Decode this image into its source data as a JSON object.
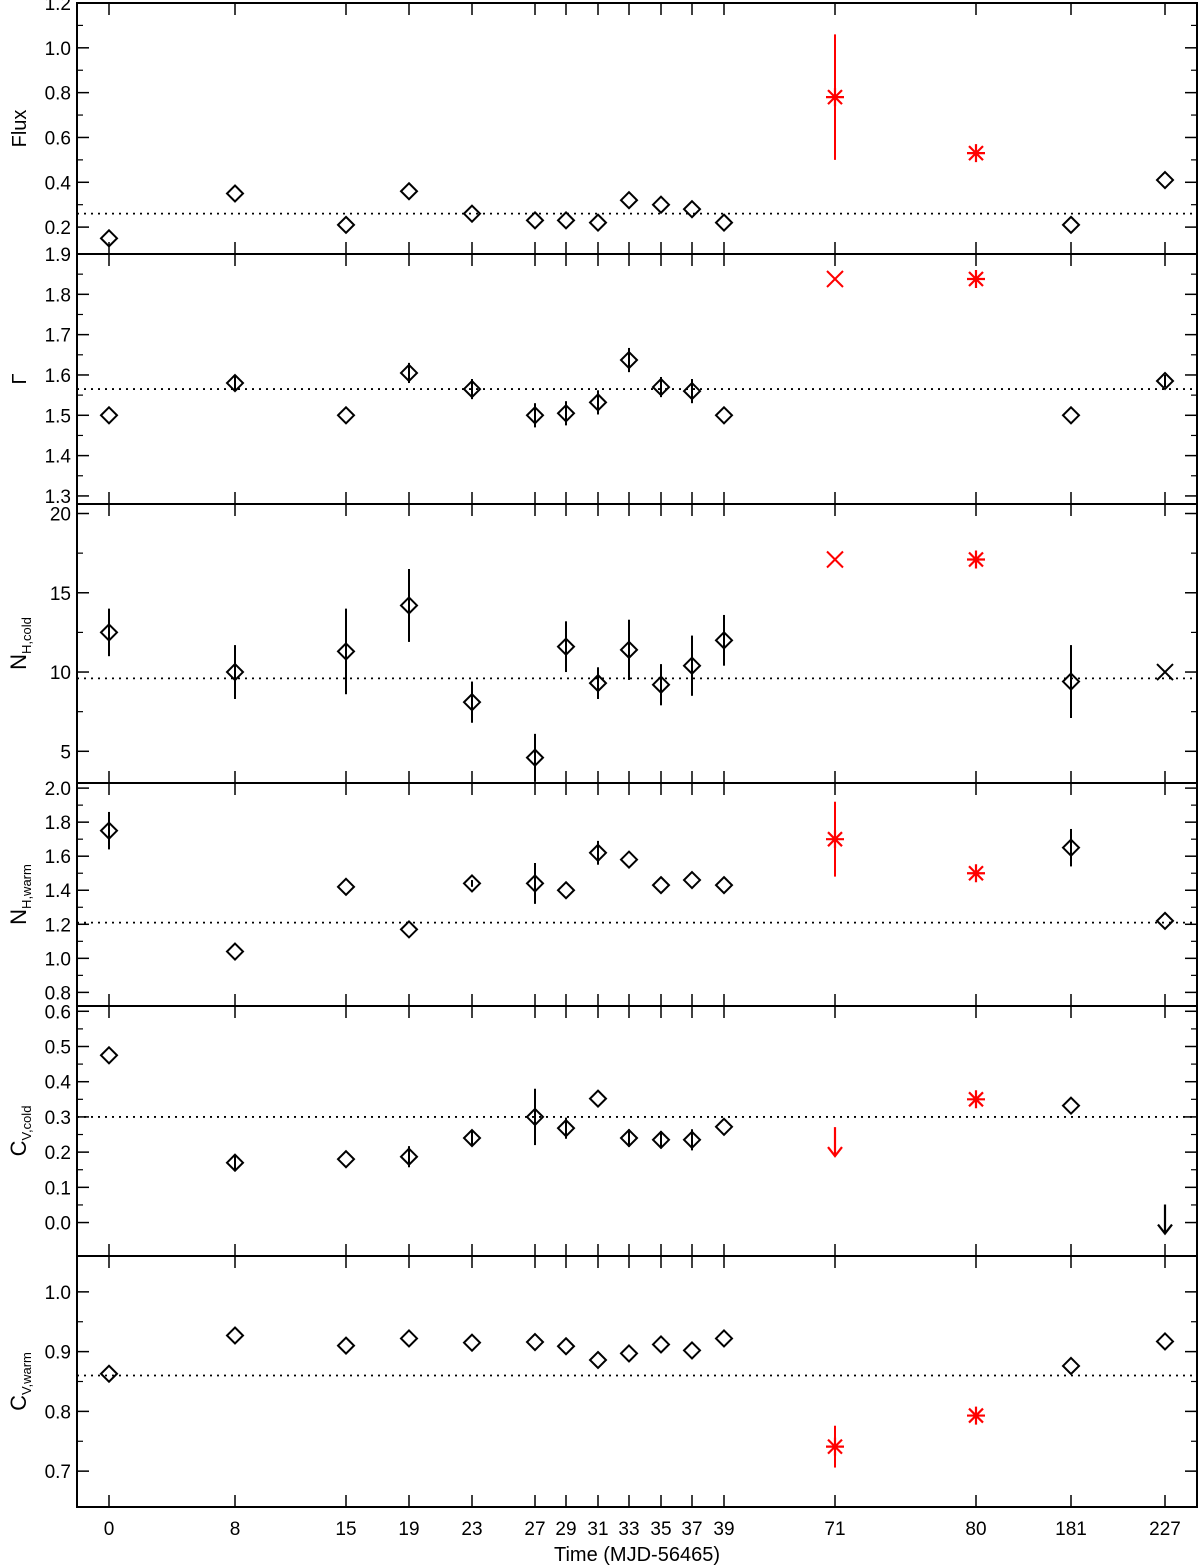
{
  "chart_data": {
    "type": "scatter",
    "colors": {
      "black": "#000000",
      "red": "#ff0000"
    },
    "xlabel": "Time (MJD-56465)",
    "x_ticks": [
      "0",
      "8",
      "15",
      "19",
      "23",
      "27",
      "29",
      "31",
      "33",
      "35",
      "37",
      "39",
      "71",
      "80",
      "181",
      "227"
    ],
    "x_axis_note": "broken axis: tick labels are evenly spaced by index, not by value",
    "panels": [
      {
        "ylabel": "Flux",
        "ylabel_sub": "",
        "ylim": [
          0.08,
          1.2
        ],
        "yticks": [
          "0.2",
          "0.4",
          "0.6",
          "0.8",
          "1.0",
          "1.2"
        ],
        "ytick_values": [
          0.2,
          0.4,
          0.6,
          0.8,
          1.0,
          1.2
        ],
        "reference_line": 0.26,
        "points": [
          {
            "x": "0",
            "y": 0.15,
            "err": 0,
            "marker": "diamond",
            "color": "black"
          },
          {
            "x": "8",
            "y": 0.35,
            "err": 0,
            "marker": "diamond",
            "color": "black"
          },
          {
            "x": "15",
            "y": 0.21,
            "err": 0,
            "marker": "diamond",
            "color": "black"
          },
          {
            "x": "19",
            "y": 0.36,
            "err": 0,
            "marker": "diamond",
            "color": "black"
          },
          {
            "x": "23",
            "y": 0.26,
            "err": 0,
            "marker": "diamond",
            "color": "black"
          },
          {
            "x": "27",
            "y": 0.23,
            "err": 0,
            "marker": "diamond",
            "color": "black"
          },
          {
            "x": "29",
            "y": 0.23,
            "err": 0,
            "marker": "diamond",
            "color": "black"
          },
          {
            "x": "31",
            "y": 0.22,
            "err": 0,
            "marker": "diamond",
            "color": "black"
          },
          {
            "x": "33",
            "y": 0.32,
            "err": 0,
            "marker": "diamond",
            "color": "black"
          },
          {
            "x": "35",
            "y": 0.3,
            "err": 0,
            "marker": "diamond",
            "color": "black"
          },
          {
            "x": "37",
            "y": 0.28,
            "err": 0,
            "marker": "diamond",
            "color": "black"
          },
          {
            "x": "39",
            "y": 0.22,
            "err": 0,
            "marker": "diamond",
            "color": "black"
          },
          {
            "x": "71",
            "y": 0.78,
            "err": 0.28,
            "marker": "star",
            "color": "red"
          },
          {
            "x": "80",
            "y": 0.53,
            "err": 0,
            "marker": "star",
            "color": "red"
          },
          {
            "x": "181",
            "y": 0.21,
            "err": 0,
            "marker": "diamond",
            "color": "black"
          },
          {
            "x": "227",
            "y": 0.41,
            "err": 0,
            "marker": "diamond",
            "color": "black"
          }
        ]
      },
      {
        "ylabel": "Γ",
        "ylabel_sub": "",
        "ylim": [
          1.28,
          1.9
        ],
        "yticks": [
          "1.3",
          "1.4",
          "1.5",
          "1.6",
          "1.7",
          "1.8",
          "1.9"
        ],
        "ytick_values": [
          1.3,
          1.4,
          1.5,
          1.6,
          1.7,
          1.8,
          1.9
        ],
        "reference_line": 1.565,
        "points": [
          {
            "x": "0",
            "y": 1.5,
            "err": 0,
            "marker": "diamond",
            "color": "black"
          },
          {
            "x": "8",
            "y": 1.58,
            "err": 0.02,
            "marker": "diamond",
            "color": "black"
          },
          {
            "x": "15",
            "y": 1.5,
            "err": 0,
            "marker": "diamond",
            "color": "black"
          },
          {
            "x": "19",
            "y": 1.605,
            "err": 0.025,
            "marker": "diamond",
            "color": "black"
          },
          {
            "x": "23",
            "y": 1.565,
            "err": 0.025,
            "marker": "diamond",
            "color": "black"
          },
          {
            "x": "27",
            "y": 1.5,
            "err": 0.03,
            "marker": "diamond",
            "color": "black"
          },
          {
            "x": "29",
            "y": 1.505,
            "err": 0.03,
            "marker": "diamond",
            "color": "black"
          },
          {
            "x": "31",
            "y": 1.532,
            "err": 0.03,
            "marker": "diamond",
            "color": "black"
          },
          {
            "x": "33",
            "y": 1.637,
            "err": 0.03,
            "marker": "diamond",
            "color": "black"
          },
          {
            "x": "35",
            "y": 1.57,
            "err": 0.025,
            "marker": "diamond",
            "color": "black"
          },
          {
            "x": "37",
            "y": 1.56,
            "err": 0.03,
            "marker": "diamond",
            "color": "black"
          },
          {
            "x": "39",
            "y": 1.5,
            "err": 0,
            "marker": "diamond",
            "color": "black"
          },
          {
            "x": "71",
            "y": 1.838,
            "err": 0,
            "marker": "cross",
            "color": "red"
          },
          {
            "x": "80",
            "y": 1.838,
            "err": 0,
            "marker": "star",
            "color": "red"
          },
          {
            "x": "181",
            "y": 1.5,
            "err": 0,
            "marker": "diamond",
            "color": "black"
          },
          {
            "x": "227",
            "y": 1.585,
            "err": 0.015,
            "marker": "diamond",
            "color": "black"
          }
        ]
      },
      {
        "ylabel": "N",
        "ylabel_sub": "H,cold",
        "ylim": [
          3.0,
          20.6
        ],
        "yticks": [
          "5",
          "10",
          "15",
          "20"
        ],
        "ytick_values": [
          5,
          10,
          15,
          20
        ],
        "reference_line": 9.6,
        "points": [
          {
            "x": "0",
            "y": 12.5,
            "err": 1.5,
            "marker": "diamond",
            "color": "black"
          },
          {
            "x": "8",
            "y": 10.0,
            "err": 1.7,
            "marker": "diamond",
            "color": "black"
          },
          {
            "x": "15",
            "y": 11.3,
            "err": 2.7,
            "marker": "diamond",
            "color": "black"
          },
          {
            "x": "19",
            "y": 14.2,
            "err": 2.3,
            "marker": "diamond",
            "color": "black"
          },
          {
            "x": "23",
            "y": 8.1,
            "err": 1.3,
            "marker": "diamond",
            "color": "black"
          },
          {
            "x": "27",
            "y": 4.6,
            "err": 1.5,
            "marker": "diamond",
            "color": "black"
          },
          {
            "x": "29",
            "y": 11.6,
            "err": 1.6,
            "marker": "diamond",
            "color": "black"
          },
          {
            "x": "31",
            "y": 9.3,
            "err": 1.0,
            "marker": "diamond",
            "color": "black"
          },
          {
            "x": "33",
            "y": 11.4,
            "err": 1.9,
            "marker": "diamond",
            "color": "black"
          },
          {
            "x": "35",
            "y": 9.2,
            "err": 1.3,
            "marker": "diamond",
            "color": "black"
          },
          {
            "x": "37",
            "y": 10.4,
            "err": 1.9,
            "marker": "diamond",
            "color": "black"
          },
          {
            "x": "39",
            "y": 12.0,
            "err": 1.6,
            "marker": "diamond",
            "color": "black"
          },
          {
            "x": "71",
            "y": 17.1,
            "err": 0,
            "marker": "cross",
            "color": "red"
          },
          {
            "x": "80",
            "y": 17.1,
            "err": 0,
            "marker": "star",
            "color": "red"
          },
          {
            "x": "181",
            "y": 9.4,
            "err": 2.3,
            "marker": "diamond",
            "color": "black"
          },
          {
            "x": "227",
            "y": 10.0,
            "err": 0,
            "marker": "cross",
            "color": "black"
          }
        ]
      },
      {
        "ylabel": "N",
        "ylabel_sub": "H,warm",
        "ylim": [
          0.72,
          2.03
        ],
        "yticks": [
          "0.8",
          "1.0",
          "1.2",
          "1.4",
          "1.6",
          "1.8",
          "2.0"
        ],
        "ytick_values": [
          0.8,
          1.0,
          1.2,
          1.4,
          1.6,
          1.8,
          2.0
        ],
        "reference_line": 1.21,
        "points": [
          {
            "x": "0",
            "y": 1.75,
            "err": 0.11,
            "marker": "diamond",
            "color": "black"
          },
          {
            "x": "8",
            "y": 1.04,
            "err": 0,
            "marker": "diamond",
            "color": "black"
          },
          {
            "x": "15",
            "y": 1.42,
            "err": 0,
            "marker": "diamond",
            "color": "black"
          },
          {
            "x": "19",
            "y": 1.17,
            "err": 0,
            "marker": "diamond",
            "color": "black"
          },
          {
            "x": "23",
            "y": 1.44,
            "err": 0.02,
            "marker": "diamond",
            "color": "black"
          },
          {
            "x": "27",
            "y": 1.44,
            "err": 0.12,
            "marker": "diamond",
            "color": "black"
          },
          {
            "x": "29",
            "y": 1.4,
            "err": 0,
            "marker": "diamond",
            "color": "black"
          },
          {
            "x": "31",
            "y": 1.62,
            "err": 0.07,
            "marker": "diamond",
            "color": "black"
          },
          {
            "x": "33",
            "y": 1.58,
            "err": 0,
            "marker": "diamond",
            "color": "black"
          },
          {
            "x": "35",
            "y": 1.43,
            "err": 0,
            "marker": "diamond",
            "color": "black"
          },
          {
            "x": "37",
            "y": 1.46,
            "err": 0,
            "marker": "diamond",
            "color": "black"
          },
          {
            "x": "39",
            "y": 1.43,
            "err": 0,
            "marker": "diamond",
            "color": "black"
          },
          {
            "x": "71",
            "y": 1.7,
            "err": 0.22,
            "marker": "star",
            "color": "red"
          },
          {
            "x": "80",
            "y": 1.5,
            "err": 0,
            "marker": "star",
            "color": "red"
          },
          {
            "x": "181",
            "y": 1.65,
            "err": 0.11,
            "marker": "diamond",
            "color": "black"
          },
          {
            "x": "227",
            "y": 1.22,
            "err": 0,
            "marker": "diamond",
            "color": "black"
          }
        ]
      },
      {
        "ylabel": "C",
        "ylabel_sub": "V,cold",
        "ylim": [
          -0.095,
          0.615
        ],
        "yticks": [
          "0.0",
          "0.1",
          "0.2",
          "0.3",
          "0.4",
          "0.5",
          "0.6"
        ],
        "ytick_values": [
          0.0,
          0.1,
          0.2,
          0.3,
          0.4,
          0.5,
          0.6
        ],
        "reference_line": 0.3,
        "points": [
          {
            "x": "0",
            "y": 0.475,
            "err": 0,
            "marker": "diamond",
            "color": "black"
          },
          {
            "x": "8",
            "y": 0.17,
            "err": 0.02,
            "marker": "diamond",
            "color": "black"
          },
          {
            "x": "15",
            "y": 0.18,
            "err": 0,
            "marker": "diamond",
            "color": "black"
          },
          {
            "x": "19",
            "y": 0.187,
            "err": 0.03,
            "marker": "diamond",
            "color": "black"
          },
          {
            "x": "23",
            "y": 0.24,
            "err": 0.02,
            "marker": "diamond",
            "color": "black"
          },
          {
            "x": "27",
            "y": 0.3,
            "err": 0.08,
            "marker": "diamond",
            "color": "black"
          },
          {
            "x": "29",
            "y": 0.268,
            "err": 0.03,
            "marker": "diamond",
            "color": "black"
          },
          {
            "x": "31",
            "y": 0.352,
            "err": 0,
            "marker": "diamond",
            "color": "black"
          },
          {
            "x": "33",
            "y": 0.24,
            "err": 0.025,
            "marker": "diamond",
            "color": "black"
          },
          {
            "x": "35",
            "y": 0.235,
            "err": 0.025,
            "marker": "diamond",
            "color": "black"
          },
          {
            "x": "37",
            "y": 0.235,
            "err": 0.03,
            "marker": "diamond",
            "color": "black"
          },
          {
            "x": "39",
            "y": 0.272,
            "err": 0,
            "marker": "diamond",
            "color": "black"
          },
          {
            "x": "71",
            "y": 0.22,
            "err": 0,
            "marker": "upper_limit",
            "color": "red"
          },
          {
            "x": "80",
            "y": 0.35,
            "err": 0,
            "marker": "star",
            "color": "red"
          },
          {
            "x": "181",
            "y": 0.332,
            "err": 0,
            "marker": "diamond",
            "color": "black"
          },
          {
            "x": "227",
            "y": 0.0,
            "err": 0,
            "marker": "upper_limit",
            "color": "black"
          }
        ]
      },
      {
        "ylabel": "C",
        "ylabel_sub": "V,warm",
        "ylim": [
          0.64,
          1.06
        ],
        "yticks": [
          "0.7",
          "0.8",
          "0.9",
          "1.0"
        ],
        "ytick_values": [
          0.7,
          0.8,
          0.9,
          1.0
        ],
        "reference_line": 0.86,
        "points": [
          {
            "x": "0",
            "y": 0.863,
            "err": 0,
            "marker": "diamond",
            "color": "black"
          },
          {
            "x": "8",
            "y": 0.927,
            "err": 0,
            "marker": "diamond",
            "color": "black"
          },
          {
            "x": "15",
            "y": 0.91,
            "err": 0,
            "marker": "diamond",
            "color": "black"
          },
          {
            "x": "19",
            "y": 0.922,
            "err": 0,
            "marker": "diamond",
            "color": "black"
          },
          {
            "x": "23",
            "y": 0.915,
            "err": 0,
            "marker": "diamond",
            "color": "black"
          },
          {
            "x": "27",
            "y": 0.916,
            "err": 0,
            "marker": "diamond",
            "color": "black"
          },
          {
            "x": "29",
            "y": 0.909,
            "err": 0,
            "marker": "diamond",
            "color": "black"
          },
          {
            "x": "31",
            "y": 0.886,
            "err": 0,
            "marker": "diamond",
            "color": "black"
          },
          {
            "x": "33",
            "y": 0.897,
            "err": 0,
            "marker": "diamond",
            "color": "black"
          },
          {
            "x": "35",
            "y": 0.912,
            "err": 0,
            "marker": "diamond",
            "color": "black"
          },
          {
            "x": "37",
            "y": 0.902,
            "err": 0,
            "marker": "diamond",
            "color": "black"
          },
          {
            "x": "39",
            "y": 0.922,
            "err": 0,
            "marker": "diamond",
            "color": "black"
          },
          {
            "x": "71",
            "y": 0.741,
            "err": 0.035,
            "marker": "star",
            "color": "red"
          },
          {
            "x": "80",
            "y": 0.793,
            "err": 0,
            "marker": "star",
            "color": "red"
          },
          {
            "x": "181",
            "y": 0.876,
            "err": 0,
            "marker": "diamond",
            "color": "black"
          },
          {
            "x": "227",
            "y": 0.917,
            "err": 0,
            "marker": "diamond",
            "color": "black"
          }
        ]
      }
    ]
  }
}
